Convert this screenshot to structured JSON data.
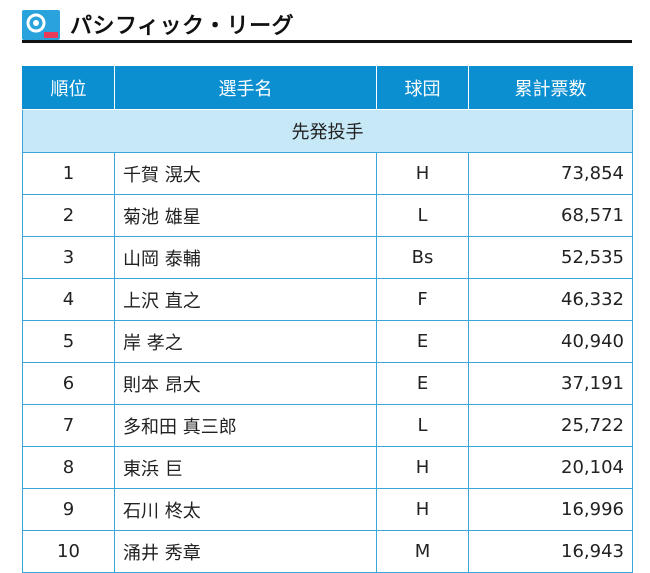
{
  "header": {
    "logo_icon": "pacific-league-logo",
    "title": "パシフィック・リーグ"
  },
  "table": {
    "columns": [
      "順位",
      "選手名",
      "球団",
      "累計票数"
    ],
    "section_label": "先発投手",
    "rows": [
      {
        "rank": "1",
        "name": "千賀 滉大",
        "team": "H",
        "votes": "73,854"
      },
      {
        "rank": "2",
        "name": "菊池 雄星",
        "team": "L",
        "votes": "68,571"
      },
      {
        "rank": "3",
        "name": "山岡 泰輔",
        "team": "Bs",
        "votes": "52,535"
      },
      {
        "rank": "4",
        "name": "上沢 直之",
        "team": "F",
        "votes": "46,332"
      },
      {
        "rank": "5",
        "name": "岸 孝之",
        "team": "E",
        "votes": "40,940"
      },
      {
        "rank": "6",
        "name": "則本 昂大",
        "team": "E",
        "votes": "37,191"
      },
      {
        "rank": "7",
        "name": "多和田 真三郎",
        "team": "L",
        "votes": "25,722"
      },
      {
        "rank": "8",
        "name": "東浜 巨",
        "team": "H",
        "votes": "20,104"
      },
      {
        "rank": "9",
        "name": "石川 柊太",
        "team": "H",
        "votes": "16,996"
      },
      {
        "rank": "10",
        "name": "涌井 秀章",
        "team": "M",
        "votes": "16,943"
      }
    ]
  },
  "colors": {
    "header_bg": "#0b8fd0",
    "section_bg": "#c7e9f7",
    "border": "#3aa6d8"
  }
}
